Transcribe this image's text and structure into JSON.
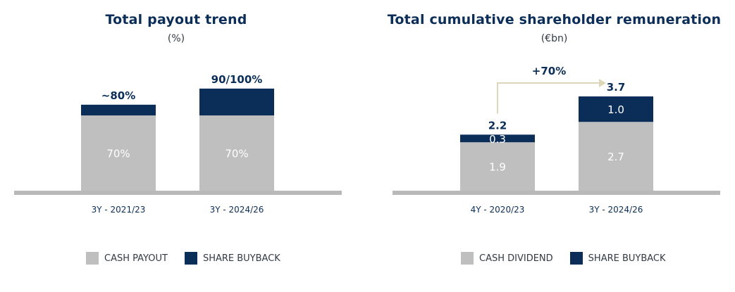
{
  "colors": {
    "cash": "#c0bfbf",
    "buyback": "#0b2e59",
    "baseline": "#b9b9b9",
    "arrow": "#ddd6b9",
    "text_dark": "#0b2e59",
    "text_white": "#ffffff"
  },
  "chart_data": [
    {
      "type": "bar",
      "stacked": true,
      "title": "Total payout trend",
      "subtitle": "(%)",
      "categories": [
        "3Y - 2021/23",
        "3Y - 2024/26"
      ],
      "series": [
        {
          "name": "CASH PAYOUT",
          "values": [
            70,
            70
          ],
          "labels": [
            "70%",
            "70%"
          ],
          "color_key": "cash"
        },
        {
          "name": "SHARE BUYBACK",
          "values": [
            10,
            25
          ],
          "labels": [
            "",
            ""
          ],
          "color_key": "buyback"
        }
      ],
      "total_labels": [
        "~80%",
        "90/100%"
      ],
      "ylim": [
        0,
        110
      ],
      "legend": "bottom"
    },
    {
      "type": "bar",
      "stacked": true,
      "title": "Total cumulative shareholder remuneration",
      "subtitle": "(€bn)",
      "categories": [
        "4Y - 2020/23",
        "3Y - 2024/26"
      ],
      "series": [
        {
          "name": "CASH DIVIDEND",
          "values": [
            1.9,
            2.7
          ],
          "labels": [
            "1.9",
            "2.7"
          ],
          "color_key": "cash"
        },
        {
          "name": "SHARE BUYBACK",
          "values": [
            0.3,
            1.0
          ],
          "labels": [
            "0.3",
            "1.0"
          ],
          "color_key": "buyback"
        }
      ],
      "total_labels": [
        "2.2",
        "3.7"
      ],
      "ylim": [
        0,
        4.64
      ],
      "growth_annotation": "+70%",
      "legend": "bottom"
    }
  ]
}
